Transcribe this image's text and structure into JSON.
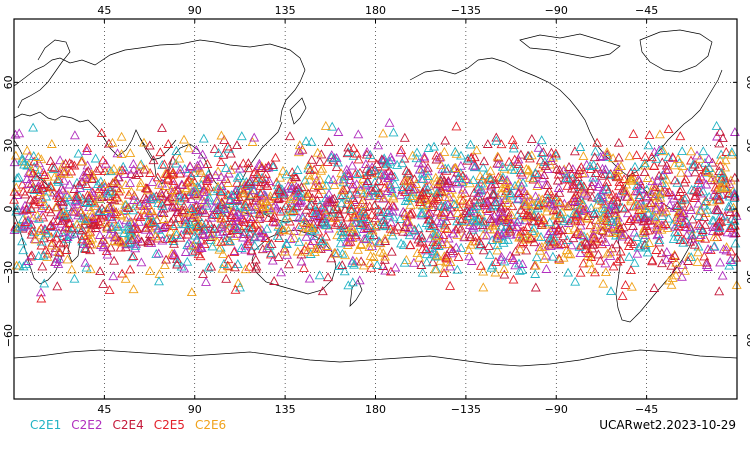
{
  "legend": [
    {
      "label": "C2E1",
      "color": "#22b3c4"
    },
    {
      "label": "C2E2",
      "color": "#b12fbf"
    },
    {
      "label": "C2E4",
      "color": "#c4193a"
    },
    {
      "label": "C2E5",
      "color": "#e3202a"
    },
    {
      "label": "C2E6",
      "color": "#f0a21b"
    }
  ],
  "caption": "UCARwet2.2023-10-29",
  "lon_ticks": [
    {
      "lon": 45,
      "label": "45"
    },
    {
      "lon": 90,
      "label": "90"
    },
    {
      "lon": 135,
      "label": "135"
    },
    {
      "lon": 180,
      "label": "180"
    },
    {
      "lon": 225,
      "label": "−135"
    },
    {
      "lon": 270,
      "label": "−90"
    },
    {
      "lon": 315,
      "label": "−45"
    }
  ],
  "lat_ticks": [
    {
      "lat": 60,
      "label": "60"
    },
    {
      "lat": 30,
      "label": "30"
    },
    {
      "lat": 0,
      "label": "0"
    },
    {
      "lat": -30,
      "label": "−30"
    },
    {
      "lat": -60,
      "label": "−60"
    }
  ],
  "map": {
    "lon_range": [
      0,
      360
    ],
    "lat_range": [
      -90,
      90
    ],
    "projection": "cylindrical equidistant",
    "grid": "dotted",
    "observations": {
      "marker": "open-triangle",
      "lat_band": [
        -45,
        45
      ],
      "total_points": 3000
    }
  }
}
